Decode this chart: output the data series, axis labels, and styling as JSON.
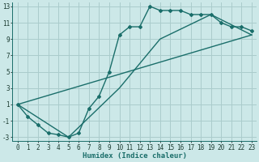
{
  "xlabel": "Humidex (Indice chaleur)",
  "bg_color": "#cce8e8",
  "grid_color": "#aacccc",
  "line_color": "#1a6e6a",
  "marker": "D",
  "marker_size": 2.0,
  "line_width": 1.0,
  "xlim": [
    -0.5,
    23.5
  ],
  "ylim": [
    -3.5,
    13.5
  ],
  "xticks": [
    0,
    1,
    2,
    3,
    4,
    5,
    6,
    7,
    8,
    9,
    10,
    11,
    12,
    13,
    14,
    15,
    16,
    17,
    18,
    19,
    20,
    21,
    22,
    23
  ],
  "yticks": [
    -3,
    -1,
    1,
    3,
    5,
    7,
    9,
    11,
    13
  ],
  "series1_x": [
    0,
    1,
    2,
    3,
    4,
    5,
    6,
    7,
    8,
    9,
    10,
    11,
    12,
    13,
    14,
    15,
    16,
    17,
    18,
    19,
    20,
    21,
    22,
    23
  ],
  "series1_y": [
    1,
    -0.5,
    -1.5,
    -2.5,
    -2.7,
    -3,
    -2.5,
    0.5,
    2,
    5,
    9.5,
    10.5,
    10.5,
    13,
    12.5,
    12.5,
    12.5,
    12,
    12,
    12,
    11,
    10.5,
    10.5,
    10
  ],
  "series2_x": [
    0,
    23
  ],
  "series2_y": [
    1,
    9.5
  ],
  "series3_x": [
    0,
    5,
    10,
    14,
    19,
    23
  ],
  "series3_y": [
    1,
    -3,
    3,
    9,
    12,
    9.5
  ],
  "tick_fontsize": 5.5,
  "xlabel_fontsize": 6.5
}
